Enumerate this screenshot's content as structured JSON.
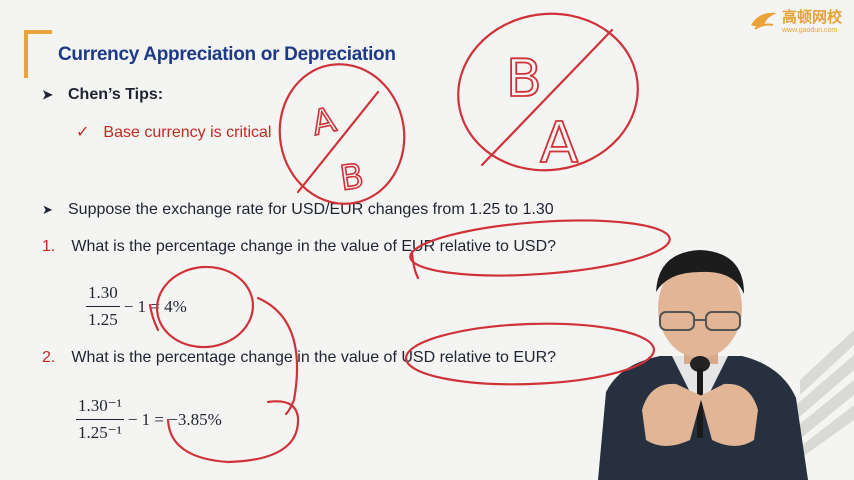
{
  "slide": {
    "title": "Currency Appreciation or Depreciation",
    "tips_heading": "Chen’s Tips:",
    "tip_item": "Base currency is critical",
    "suppose": "Suppose the exchange rate for USD/EUR changes from 1.25 to 1.30",
    "q1_num": "1.",
    "q1": "What is the percentage change in the value of EUR relative to USD?",
    "q1_num_top": "1.30",
    "q1_num_bottom": "1.25",
    "q1_rest": "− 1 = 4%",
    "q2_num": "2.",
    "q2": "What is the percentage change in the value of USD relative to EUR?",
    "q2_num_top": "1.30⁻¹",
    "q2_num_bottom": "1.25⁻¹",
    "q2_rest": "− 1 = −3.85%"
  },
  "logo": {
    "name": "高顿网校",
    "url_text": "www.gaodun.com"
  },
  "annotations": {
    "left_top": "A",
    "left_bottom": "B",
    "right_top": "B",
    "right_bottom": "A"
  },
  "colors": {
    "accent_red": "#c42820",
    "title_blue": "#1d3a8a",
    "brand_orange": "#e8a33a",
    "ink": "#d0323a"
  }
}
